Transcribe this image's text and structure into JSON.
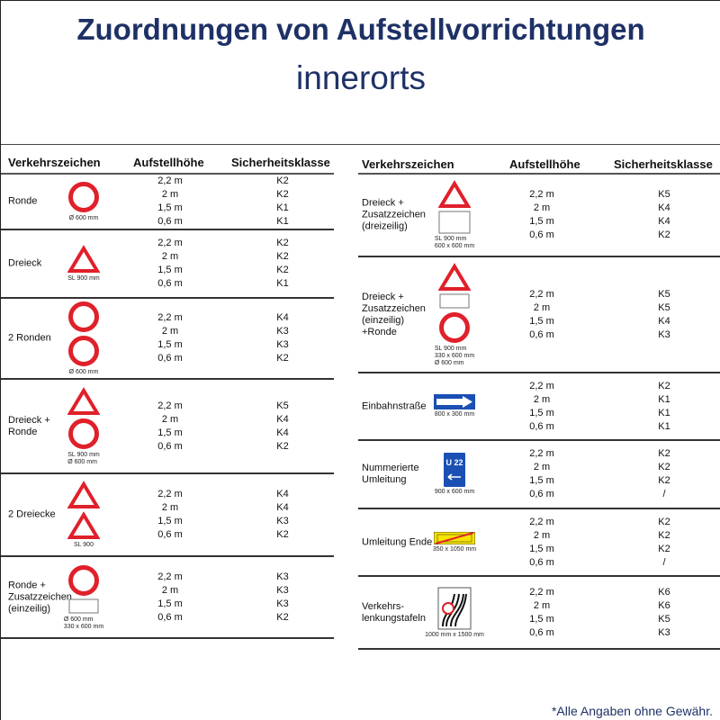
{
  "title": "Zuordnungen von Aufstellvorrichtungen",
  "subtitle": "innerorts",
  "headers": {
    "sign": "Verkehrszeichen",
    "height": "Aufstellhöhe",
    "class": "Sicherheitsklasse"
  },
  "footnote": "*Alle Angaben ohne Gewähr.",
  "colors": {
    "title": "#1e3166",
    "sign_red": "#e0202a",
    "sign_blue": "#1a4fb4",
    "sign_yellow": "#f5e300"
  },
  "left_rows": [
    {
      "name": "Ronde",
      "signs": [
        "circle"
      ],
      "caption": [
        "Ø 600 mm"
      ],
      "heights": [
        "2,2 m",
        "2 m",
        "1,5 m",
        "0,6 m"
      ],
      "classes": [
        "K2",
        "K2",
        "K1",
        "K1"
      ]
    },
    {
      "name": "Dreieck",
      "signs": [
        "triangle"
      ],
      "caption": [
        "SL 900 mm"
      ],
      "heights": [
        "2,2 m",
        "2 m",
        "1,5 m",
        "0,6 m"
      ],
      "classes": [
        "K2",
        "K2",
        "K2",
        "K1"
      ]
    },
    {
      "name": "2 Ronden",
      "signs": [
        "circle",
        "circle"
      ],
      "caption": [
        "Ø 600 mm"
      ],
      "heights": [
        "2,2 m",
        "2 m",
        "1,5 m",
        "0,6 m"
      ],
      "classes": [
        "K4",
        "K3",
        "K3",
        "K2"
      ]
    },
    {
      "name": "Dreieck +\nRonde",
      "signs": [
        "triangle",
        "circle"
      ],
      "caption": [
        "SL 900 mm",
        "Ø 600 mm"
      ],
      "heights": [
        "2,2 m",
        "2 m",
        "1,5 m",
        "0,6 m"
      ],
      "classes": [
        "K5",
        "K4",
        "K4",
        "K2"
      ]
    },
    {
      "name": "2 Dreiecke",
      "signs": [
        "triangle",
        "triangle"
      ],
      "caption": [
        "SL 900"
      ],
      "heights": [
        "2,2 m",
        "2 m",
        "1,5 m",
        "0,6 m"
      ],
      "classes": [
        "K4",
        "K4",
        "K3",
        "K2"
      ]
    },
    {
      "name": "Ronde +\nZusatzzeichen\n(einzeilig)",
      "signs": [
        "circle",
        "plate-small"
      ],
      "caption": [
        "Ø 600 mm",
        "330 x 600 mm"
      ],
      "heights": [
        "2,2 m",
        "2 m",
        "1,5 m",
        "0,6 m"
      ],
      "classes": [
        "K3",
        "K3",
        "K3",
        "K2"
      ]
    }
  ],
  "right_rows": [
    {
      "name": "Dreieck +\nZusatzzeichen\n(dreizeilig)",
      "signs": [
        "triangle",
        "plate-large"
      ],
      "caption": [
        "SL 900 mm",
        "600 x 600 mm"
      ],
      "heights": [
        "2,2 m",
        "2 m",
        "1,5 m",
        "0,6 m"
      ],
      "classes": [
        "K5",
        "K4",
        "K4",
        "K2"
      ]
    },
    {
      "name": "Dreieck +\nZusatzzeichen\n(einzeilig)\n+Ronde",
      "signs": [
        "triangle",
        "plate-small",
        "circle"
      ],
      "caption": [
        "SL 900 mm",
        "330 x 600 mm",
        "Ø 600 mm"
      ],
      "heights": [
        "2,2 m",
        "2 m",
        "1,5 m",
        "0,6 m"
      ],
      "classes": [
        "K5",
        "K5",
        "K4",
        "K3"
      ]
    },
    {
      "name": "Einbahnstraße",
      "signs": [
        "oneway"
      ],
      "caption": [
        "800 x 300 mm"
      ],
      "heights": [
        "2,2 m",
        "2 m",
        "1,5 m",
        "0,6 m"
      ],
      "classes": [
        "K2",
        "K1",
        "K1",
        "K1"
      ]
    },
    {
      "name": "Nummerierte\nUmleitung",
      "signs": [
        "u22"
      ],
      "sign_text": "U 22",
      "caption": [
        "900 x 600 mm"
      ],
      "heights": [
        "2,2 m",
        "2 m",
        "1,5 m",
        "0,6 m"
      ],
      "classes": [
        "K2",
        "K2",
        "K2",
        "/"
      ]
    },
    {
      "name": "Umleitung Ende",
      "signs": [
        "umleitung-ende"
      ],
      "caption": [
        "350 x 1050 mm"
      ],
      "heights": [
        "2,2 m",
        "2 m",
        "1,5 m",
        "0,6 m"
      ],
      "classes": [
        "K2",
        "K2",
        "K2",
        "/"
      ]
    },
    {
      "name": "Verkehrs-\nlenkungstafeln",
      "signs": [
        "verkehrslenkungstafel"
      ],
      "caption": [
        "1000 mm x 1500 mm"
      ],
      "heights": [
        "2,2 m",
        "2 m",
        "1,5 m",
        "0,6 m"
      ],
      "classes": [
        "K6",
        "K6",
        "K5",
        "K3"
      ]
    }
  ]
}
